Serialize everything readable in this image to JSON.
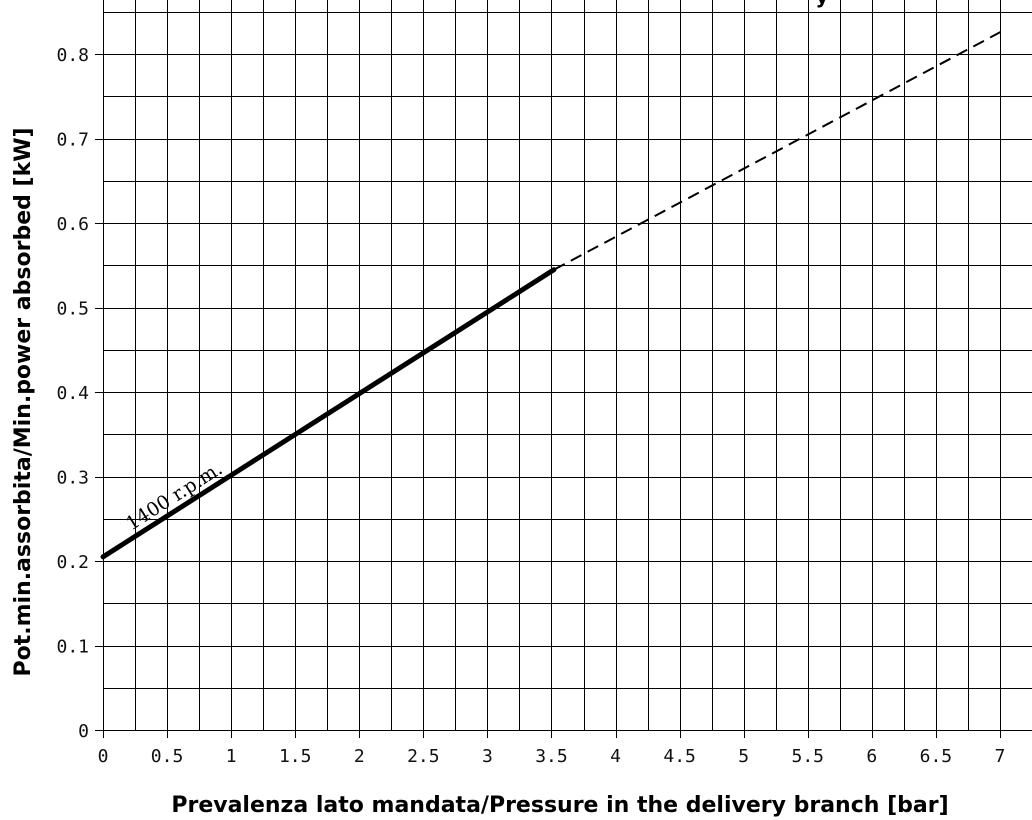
{
  "chart_data": {
    "type": "line",
    "title": "",
    "top_partial_text": "y",
    "xlabel": "Prevalenza lato mandata/Pressure in the delivery branch [bar]",
    "ylabel": "Pot.min.assorbita/Min.power absorbed [kW]",
    "xlim": [
      0,
      7.25
    ],
    "ylim": [
      0,
      0.85
    ],
    "x_grid_step": 0.25,
    "y_grid_step": 0.05,
    "grid": true,
    "x_ticks": [
      "0",
      "0.5",
      "1",
      "1.5",
      "2",
      "2.5",
      "3",
      "3.5",
      "4",
      "4.5",
      "5",
      "5.5",
      "6",
      "6.5",
      "7"
    ],
    "x_tick_values": [
      0,
      0.5,
      1,
      1.5,
      2,
      2.5,
      3,
      3.5,
      4,
      4.5,
      5,
      5.5,
      6,
      6.5,
      7
    ],
    "y_ticks": [
      "0",
      "0.1",
      "0.2",
      "0.3",
      "0.4",
      "0.5",
      "0.6",
      "0.7",
      "0.8"
    ],
    "y_tick_values": [
      0,
      0.1,
      0.2,
      0.3,
      0.4,
      0.5,
      0.6,
      0.7,
      0.8
    ],
    "series": [
      {
        "name": "1400 r.p.m.",
        "solid": {
          "x": [
            0,
            3.52
          ],
          "y": [
            0.205,
            0.545
          ]
        },
        "dashed": {
          "x": [
            3.52,
            7.05
          ],
          "y": [
            0.545,
            0.83
          ]
        }
      }
    ]
  }
}
